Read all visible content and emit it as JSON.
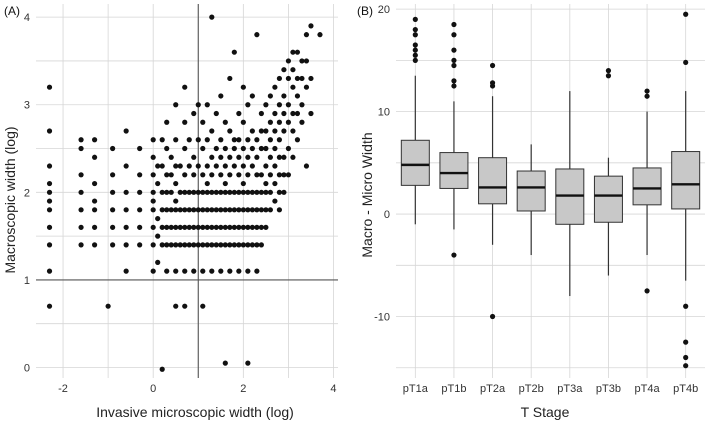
{
  "chart_data": [
    {
      "panel": "(A)",
      "type": "scatter",
      "title": "",
      "xlabel": "Invasive microscopic width (log)",
      "ylabel": "Macroscopic width (log)",
      "xlim": [
        -2.6,
        4.1
      ],
      "ylim": [
        -0.12,
        4.15
      ],
      "xticks": [
        "-2",
        "0",
        "2",
        "4"
      ],
      "xtick_values": [
        -2,
        0,
        2,
        4
      ],
      "yticks": [
        "0",
        "1",
        "2",
        "3",
        "4"
      ],
      "ytick_values": [
        0,
        1,
        2,
        3,
        4
      ],
      "reference_lines": {
        "vertical_x": 1,
        "horizontal_y": 1
      },
      "grid": true,
      "points": [
        [
          -2.3,
          0.7
        ],
        [
          -2.3,
          1.1
        ],
        [
          -2.3,
          1.4
        ],
        [
          -2.3,
          1.6
        ],
        [
          -2.3,
          1.8
        ],
        [
          -2.3,
          1.9
        ],
        [
          -2.3,
          2.0
        ],
        [
          -2.3,
          2.1
        ],
        [
          -2.3,
          2.3
        ],
        [
          -2.3,
          2.7
        ],
        [
          -2.3,
          3.2
        ],
        [
          -1.6,
          1.4
        ],
        [
          -1.6,
          1.6
        ],
        [
          -1.6,
          1.8
        ],
        [
          -1.6,
          2.0
        ],
        [
          -1.6,
          2.2
        ],
        [
          -1.6,
          2.5
        ],
        [
          -1.6,
          2.6
        ],
        [
          -1.3,
          1.4
        ],
        [
          -1.3,
          1.6
        ],
        [
          -1.3,
          1.8
        ],
        [
          -1.3,
          1.9
        ],
        [
          -1.3,
          2.1
        ],
        [
          -1.3,
          2.4
        ],
        [
          -1.3,
          2.6
        ],
        [
          -1.0,
          0.7
        ],
        [
          -0.9,
          1.4
        ],
        [
          -0.9,
          1.6
        ],
        [
          -0.9,
          1.8
        ],
        [
          -0.9,
          2.0
        ],
        [
          -0.9,
          2.2
        ],
        [
          -0.9,
          2.5
        ],
        [
          -0.6,
          1.1
        ],
        [
          -0.6,
          1.4
        ],
        [
          -0.6,
          1.6
        ],
        [
          -0.6,
          1.8
        ],
        [
          -0.6,
          2.0
        ],
        [
          -0.6,
          2.3
        ],
        [
          -0.6,
          2.7
        ],
        [
          -0.3,
          1.4
        ],
        [
          -0.3,
          1.6
        ],
        [
          -0.3,
          1.8
        ],
        [
          -0.3,
          2.0
        ],
        [
          -0.3,
          2.2
        ],
        [
          -0.3,
          2.5
        ],
        [
          0.0,
          1.1
        ],
        [
          0.0,
          1.4
        ],
        [
          0.0,
          1.6
        ],
        [
          0.0,
          1.8
        ],
        [
          0.0,
          1.9
        ],
        [
          0.0,
          2.0
        ],
        [
          0.0,
          2.2
        ],
        [
          0.0,
          2.4
        ],
        [
          0.0,
          2.6
        ],
        [
          0.1,
          1.2
        ],
        [
          0.1,
          1.5
        ],
        [
          0.1,
          1.7
        ],
        [
          0.1,
          2.1
        ],
        [
          0.1,
          2.3
        ],
        [
          0.2,
          1.4
        ],
        [
          0.2,
          1.6
        ],
        [
          0.2,
          1.8
        ],
        [
          0.2,
          2.0
        ],
        [
          0.2,
          2.3
        ],
        [
          0.2,
          2.6
        ],
        [
          0.3,
          1.1
        ],
        [
          0.3,
          1.4
        ],
        [
          0.3,
          1.6
        ],
        [
          0.3,
          1.8
        ],
        [
          0.3,
          2.0
        ],
        [
          0.3,
          2.2
        ],
        [
          0.3,
          2.5
        ],
        [
          0.3,
          2.8
        ],
        [
          0.4,
          1.4
        ],
        [
          0.4,
          1.6
        ],
        [
          0.4,
          1.8
        ],
        [
          0.4,
          2.0
        ],
        [
          0.4,
          2.2
        ],
        [
          0.4,
          2.4
        ],
        [
          0.5,
          0.7
        ],
        [
          0.5,
          1.1
        ],
        [
          0.5,
          1.4
        ],
        [
          0.5,
          1.6
        ],
        [
          0.5,
          1.8
        ],
        [
          0.5,
          1.9
        ],
        [
          0.5,
          2.1
        ],
        [
          0.5,
          2.3
        ],
        [
          0.5,
          2.6
        ],
        [
          0.5,
          3.0
        ],
        [
          0.6,
          1.4
        ],
        [
          0.6,
          1.6
        ],
        [
          0.6,
          1.8
        ],
        [
          0.6,
          2.0
        ],
        [
          0.6,
          2.3
        ],
        [
          0.7,
          0.7
        ],
        [
          0.7,
          1.1
        ],
        [
          0.7,
          1.4
        ],
        [
          0.7,
          1.6
        ],
        [
          0.7,
          1.8
        ],
        [
          0.7,
          2.0
        ],
        [
          0.7,
          2.2
        ],
        [
          0.7,
          2.5
        ],
        [
          0.7,
          2.8
        ],
        [
          0.7,
          3.2
        ],
        [
          0.8,
          1.4
        ],
        [
          0.8,
          1.6
        ],
        [
          0.8,
          1.8
        ],
        [
          0.8,
          2.0
        ],
        [
          0.8,
          2.3
        ],
        [
          0.8,
          2.6
        ],
        [
          0.9,
          1.1
        ],
        [
          0.9,
          1.4
        ],
        [
          0.9,
          1.6
        ],
        [
          0.9,
          1.8
        ],
        [
          0.9,
          2.0
        ],
        [
          0.9,
          2.2
        ],
        [
          0.9,
          2.4
        ],
        [
          0.9,
          2.9
        ],
        [
          1.0,
          1.4
        ],
        [
          1.0,
          1.6
        ],
        [
          1.0,
          1.8
        ],
        [
          1.0,
          2.0
        ],
        [
          1.0,
          2.3
        ],
        [
          1.0,
          2.6
        ],
        [
          1.0,
          3.0
        ],
        [
          1.1,
          0.7
        ],
        [
          1.1,
          1.1
        ],
        [
          1.1,
          1.4
        ],
        [
          1.1,
          1.6
        ],
        [
          1.1,
          1.8
        ],
        [
          1.1,
          2.0
        ],
        [
          1.1,
          2.2
        ],
        [
          1.1,
          2.5
        ],
        [
          1.1,
          2.8
        ],
        [
          1.2,
          1.4
        ],
        [
          1.2,
          1.6
        ],
        [
          1.2,
          1.8
        ],
        [
          1.2,
          2.0
        ],
        [
          1.2,
          2.1
        ],
        [
          1.2,
          2.3
        ],
        [
          1.2,
          2.6
        ],
        [
          1.2,
          3.0
        ],
        [
          1.3,
          1.1
        ],
        [
          1.3,
          1.4
        ],
        [
          1.3,
          1.6
        ],
        [
          1.3,
          1.8
        ],
        [
          1.3,
          2.0
        ],
        [
          1.3,
          2.2
        ],
        [
          1.3,
          2.4
        ],
        [
          1.3,
          2.7
        ],
        [
          1.3,
          4.0
        ],
        [
          1.4,
          1.4
        ],
        [
          1.4,
          1.6
        ],
        [
          1.4,
          1.8
        ],
        [
          1.4,
          2.0
        ],
        [
          1.4,
          2.3
        ],
        [
          1.4,
          2.5
        ],
        [
          1.4,
          2.9
        ],
        [
          1.5,
          1.1
        ],
        [
          1.5,
          1.4
        ],
        [
          1.5,
          1.6
        ],
        [
          1.5,
          1.8
        ],
        [
          1.5,
          2.0
        ],
        [
          1.5,
          2.2
        ],
        [
          1.5,
          2.4
        ],
        [
          1.5,
          2.6
        ],
        [
          1.5,
          3.1
        ],
        [
          1.6,
          1.4
        ],
        [
          1.6,
          1.6
        ],
        [
          1.6,
          1.8
        ],
        [
          1.6,
          2.0
        ],
        [
          1.6,
          2.1
        ],
        [
          1.6,
          2.3
        ],
        [
          1.6,
          2.5
        ],
        [
          1.6,
          2.8
        ],
        [
          1.6,
          0.05
        ],
        [
          1.7,
          1.1
        ],
        [
          1.7,
          1.4
        ],
        [
          1.7,
          1.6
        ],
        [
          1.7,
          1.8
        ],
        [
          1.7,
          2.0
        ],
        [
          1.7,
          2.2
        ],
        [
          1.7,
          2.4
        ],
        [
          1.7,
          2.7
        ],
        [
          1.7,
          3.3
        ],
        [
          1.8,
          1.4
        ],
        [
          1.8,
          1.6
        ],
        [
          1.8,
          1.8
        ],
        [
          1.8,
          2.0
        ],
        [
          1.8,
          2.3
        ],
        [
          1.8,
          2.5
        ],
        [
          1.8,
          2.6
        ],
        [
          1.8,
          3.6
        ],
        [
          1.9,
          1.1
        ],
        [
          1.9,
          1.4
        ],
        [
          1.9,
          1.6
        ],
        [
          1.9,
          1.8
        ],
        [
          1.9,
          2.0
        ],
        [
          1.9,
          2.2
        ],
        [
          1.9,
          2.4
        ],
        [
          1.9,
          2.6
        ],
        [
          1.9,
          2.9
        ],
        [
          2.0,
          1.4
        ],
        [
          2.0,
          1.6
        ],
        [
          2.0,
          1.8
        ],
        [
          2.0,
          2.0
        ],
        [
          2.0,
          2.1
        ],
        [
          2.0,
          2.3
        ],
        [
          2.0,
          2.5
        ],
        [
          2.0,
          2.8
        ],
        [
          2.0,
          3.2
        ],
        [
          2.1,
          1.1
        ],
        [
          2.1,
          1.4
        ],
        [
          2.1,
          1.6
        ],
        [
          2.1,
          1.8
        ],
        [
          2.1,
          2.0
        ],
        [
          2.1,
          2.2
        ],
        [
          2.1,
          2.4
        ],
        [
          2.1,
          2.6
        ],
        [
          2.1,
          3.0
        ],
        [
          2.1,
          0.05
        ],
        [
          2.2,
          1.4
        ],
        [
          2.2,
          1.6
        ],
        [
          2.2,
          1.8
        ],
        [
          2.2,
          2.0
        ],
        [
          2.2,
          2.3
        ],
        [
          2.2,
          2.5
        ],
        [
          2.2,
          2.7
        ],
        [
          2.2,
          3.1
        ],
        [
          2.3,
          1.1
        ],
        [
          2.3,
          1.4
        ],
        [
          2.3,
          1.6
        ],
        [
          2.3,
          1.8
        ],
        [
          2.3,
          2.0
        ],
        [
          2.3,
          2.2
        ],
        [
          2.3,
          2.4
        ],
        [
          2.3,
          2.6
        ],
        [
          2.3,
          3.8
        ],
        [
          2.4,
          1.4
        ],
        [
          2.4,
          1.6
        ],
        [
          2.4,
          1.8
        ],
        [
          2.4,
          2.0
        ],
        [
          2.4,
          2.2
        ],
        [
          2.4,
          2.5
        ],
        [
          2.4,
          2.7
        ],
        [
          2.4,
          2.9
        ],
        [
          2.5,
          1.6
        ],
        [
          2.5,
          1.8
        ],
        [
          2.5,
          2.0
        ],
        [
          2.5,
          2.1
        ],
        [
          2.5,
          2.3
        ],
        [
          2.5,
          2.5
        ],
        [
          2.5,
          2.7
        ],
        [
          2.5,
          3.0
        ],
        [
          2.6,
          1.8
        ],
        [
          2.6,
          2.0
        ],
        [
          2.6,
          2.2
        ],
        [
          2.6,
          2.4
        ],
        [
          2.6,
          2.6
        ],
        [
          2.6,
          2.8
        ],
        [
          2.6,
          3.1
        ],
        [
          2.7,
          1.9
        ],
        [
          2.7,
          2.1
        ],
        [
          2.7,
          2.3
        ],
        [
          2.7,
          2.5
        ],
        [
          2.7,
          2.7
        ],
        [
          2.7,
          2.9
        ],
        [
          2.7,
          3.2
        ],
        [
          2.8,
          1.8
        ],
        [
          2.8,
          2.0
        ],
        [
          2.8,
          2.2
        ],
        [
          2.8,
          2.4
        ],
        [
          2.8,
          2.6
        ],
        [
          2.8,
          2.8
        ],
        [
          2.8,
          3.0
        ],
        [
          2.8,
          3.3
        ],
        [
          2.9,
          2.0
        ],
        [
          2.9,
          2.2
        ],
        [
          2.9,
          2.4
        ],
        [
          2.9,
          2.7
        ],
        [
          2.9,
          2.9
        ],
        [
          2.9,
          3.1
        ],
        [
          2.9,
          3.4
        ],
        [
          3.0,
          2.2
        ],
        [
          3.0,
          2.5
        ],
        [
          3.0,
          2.8
        ],
        [
          3.0,
          3.0
        ],
        [
          3.0,
          3.3
        ],
        [
          3.0,
          3.5
        ],
        [
          3.1,
          2.4
        ],
        [
          3.1,
          2.7
        ],
        [
          3.1,
          2.9
        ],
        [
          3.1,
          3.2
        ],
        [
          3.1,
          3.4
        ],
        [
          3.1,
          3.6
        ],
        [
          3.2,
          2.6
        ],
        [
          3.2,
          2.9
        ],
        [
          3.2,
          3.1
        ],
        [
          3.2,
          3.3
        ],
        [
          3.2,
          3.6
        ],
        [
          3.3,
          2.8
        ],
        [
          3.3,
          3.0
        ],
        [
          3.3,
          3.3
        ],
        [
          3.3,
          3.5
        ],
        [
          3.4,
          2.3
        ],
        [
          3.4,
          3.2
        ],
        [
          3.4,
          3.5
        ],
        [
          3.4,
          3.8
        ],
        [
          3.5,
          2.9
        ],
        [
          3.5,
          3.3
        ],
        [
          3.5,
          3.9
        ],
        [
          3.7,
          3.8
        ],
        [
          0.2,
          -0.02
        ]
      ]
    },
    {
      "panel": "(B)",
      "type": "box",
      "title": "",
      "xlabel": "T Stage",
      "ylabel": "Macro - Micro Width",
      "ylim": [
        -16,
        20.5
      ],
      "yticks": [
        "-10",
        "0",
        "10",
        "20"
      ],
      "ytick_values": [
        -10,
        0,
        10,
        20
      ],
      "grid": true,
      "categories": [
        "pT1a",
        "pT1b",
        "pT2a",
        "pT2b",
        "pT3a",
        "pT3b",
        "pT4a",
        "pT4b"
      ],
      "boxes": [
        {
          "q1": 2.8,
          "median": 4.8,
          "q3": 7.2,
          "whisker_low": -1.0,
          "whisker_high": 13.5,
          "outliers": [
            15.0,
            15.5,
            16.0,
            16.5,
            17.5,
            18.0,
            19.0
          ]
        },
        {
          "q1": 2.5,
          "median": 4.0,
          "q3": 6.0,
          "whisker_low": -1.5,
          "whisker_high": 11.0,
          "outliers": [
            -4.0,
            12.5,
            13.0,
            14.5,
            15.0,
            16.0,
            17.5,
            18.5
          ]
        },
        {
          "q1": 1.0,
          "median": 2.6,
          "q3": 5.5,
          "whisker_low": -3.0,
          "whisker_high": 11.5,
          "outliers": [
            -10.0,
            12.5,
            12.8,
            14.5
          ]
        },
        {
          "q1": 0.3,
          "median": 2.6,
          "q3": 4.2,
          "whisker_low": -4.0,
          "whisker_high": 6.8,
          "outliers": []
        },
        {
          "q1": -1.0,
          "median": 1.8,
          "q3": 4.4,
          "whisker_low": -8.0,
          "whisker_high": 12.0,
          "outliers": []
        },
        {
          "q1": -0.8,
          "median": 1.8,
          "q3": 3.7,
          "whisker_low": -6.0,
          "whisker_high": 5.5,
          "outliers": [
            13.5,
            14.0
          ]
        },
        {
          "q1": 0.9,
          "median": 2.5,
          "q3": 4.5,
          "whisker_low": -4.0,
          "whisker_high": 10.0,
          "outliers": [
            -7.5,
            11.5,
            12.0
          ]
        },
        {
          "q1": 0.5,
          "median": 2.9,
          "q3": 6.1,
          "whisker_low": -6.5,
          "whisker_high": 12.0,
          "outliers": [
            -9.0,
            -12.5,
            -14.0,
            -14.8,
            14.8,
            19.5
          ]
        }
      ]
    }
  ],
  "colors": {
    "point": "#111111",
    "box_fill": "#c8c8c8",
    "box_stroke": "#333333",
    "grid": "#d6d6d6",
    "ref_line": "#555555"
  }
}
